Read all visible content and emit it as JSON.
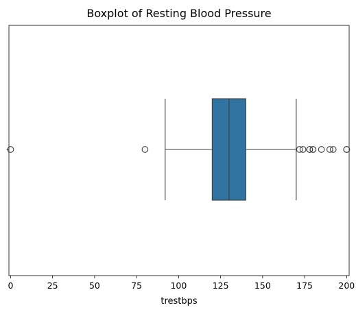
{
  "chart_data": {
    "type": "boxplot",
    "title": "Boxplot of Resting Blood Pressure",
    "xlabel": "trestbps",
    "ylabel": "",
    "orientation": "horizontal",
    "xlim": [
      -1,
      201.5
    ],
    "xticks": [
      0,
      25,
      50,
      75,
      100,
      125,
      150,
      175,
      200
    ],
    "grid": false,
    "box": {
      "whisker_low": 92,
      "q1": 120,
      "median": 130,
      "q3": 140,
      "whisker_high": 170,
      "fill_color": "#3274a1",
      "line_color": "#3d3d3d"
    },
    "outliers": [
      0,
      80,
      172,
      174,
      178,
      178,
      180,
      180,
      185,
      190,
      192,
      200,
      200
    ],
    "outlier_color": "#3d3d3d"
  }
}
